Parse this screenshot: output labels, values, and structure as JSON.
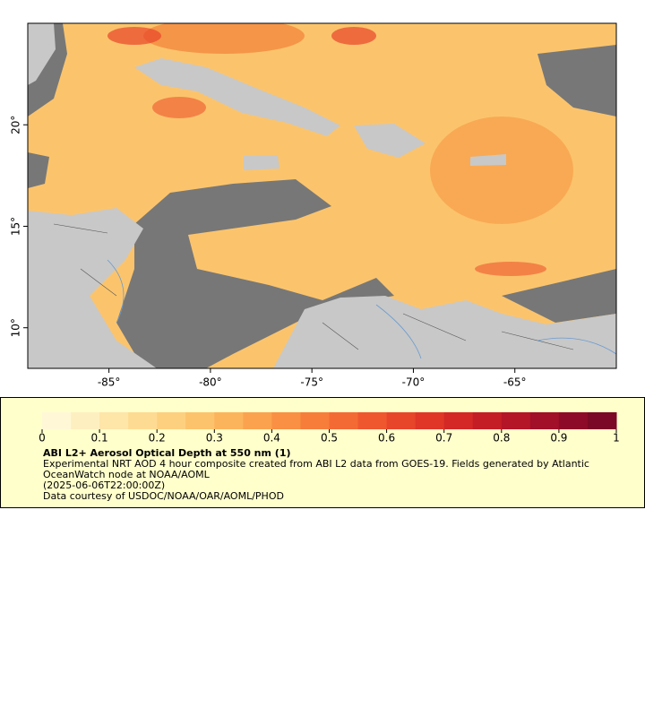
{
  "chart_data": {
    "type": "map",
    "title": "ABI L2+ Aerosol Optical Depth at 550 nm (1)",
    "description": "Experimental NRT AOD 4 hour composite created from ABI L2 data from GOES-19. Fields generated by Atlantic OceanWatch node at NOAA/AOML",
    "time": "(2025-06-06T22:00:00Z)",
    "credit": "Data courtesy of USDOC/NOAA/OAR/AOML/PHOD",
    "xlim": [
      -89,
      -60
    ],
    "ylim": [
      8,
      25
    ],
    "xticks": [
      {
        "value": -85,
        "label": "-85°"
      },
      {
        "value": -80,
        "label": "-80°"
      },
      {
        "value": -75,
        "label": "-75°"
      },
      {
        "value": -70,
        "label": "-70°"
      },
      {
        "value": -65,
        "label": "-65°"
      }
    ],
    "yticks": [
      {
        "value": 10,
        "label": "10°"
      },
      {
        "value": 15,
        "label": "15°"
      },
      {
        "value": 20,
        "label": "20°"
      }
    ],
    "colorbar": {
      "lim": [
        0,
        1
      ],
      "ticks": [
        0,
        0.1,
        0.2,
        0.3,
        0.4,
        0.5,
        0.6,
        0.7,
        0.8,
        0.9,
        1
      ],
      "colors": [
        "#fff7d6",
        "#feefc0",
        "#fee5a8",
        "#fedb92",
        "#fdd07f",
        "#fcc36c",
        "#fcb45c",
        "#fba24e",
        "#f99043",
        "#f77d3b",
        "#f46a34",
        "#ef572f",
        "#e8462b",
        "#df3628",
        "#d32826",
        "#c51d26",
        "#b41527",
        "#a10f28",
        "#8d0b28",
        "#7a0826"
      ]
    }
  }
}
